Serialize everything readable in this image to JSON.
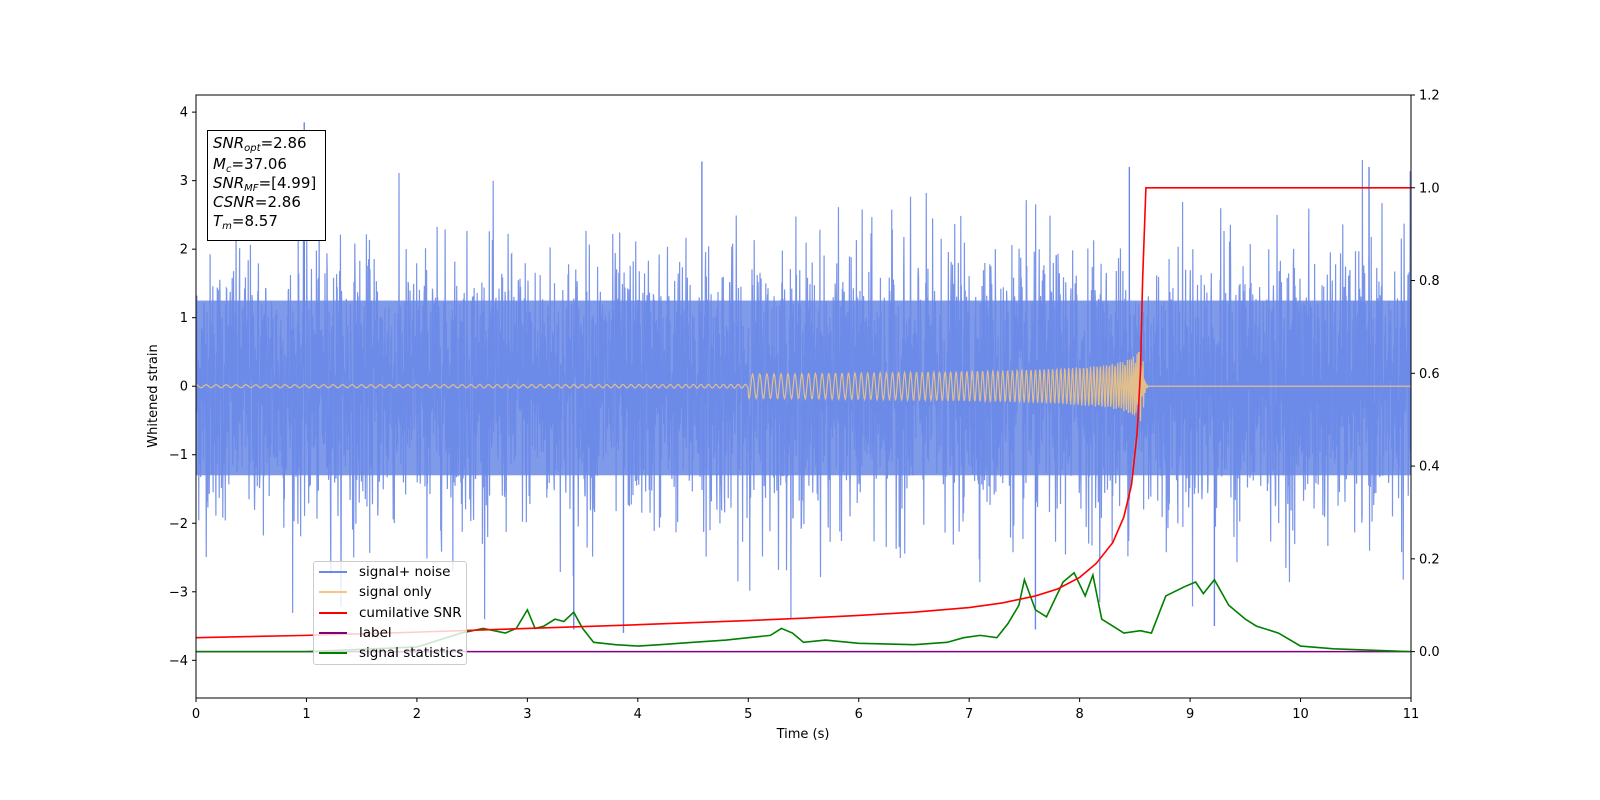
{
  "annotation": {
    "snr_opt_base": "SNR",
    "snr_opt_sub": "opt",
    "snr_opt_val": "=2.86",
    "mc_base": "M",
    "mc_sub": "c",
    "mc_val": "=37.06",
    "snr_mf_base": "SNR",
    "snr_mf_sub": "MF",
    "snr_mf_val": "=[4.99]",
    "csnr_base": "CSNR",
    "csnr_val": "=2.86",
    "tm_base": "T",
    "tm_sub": "m",
    "tm_val": "=8.57"
  },
  "chart_data": {
    "type": "line",
    "xlabel": "Time (s)",
    "ylabel": "Whitened strain",
    "xlim": [
      0,
      11
    ],
    "ylim": [
      -4.55,
      4.25
    ],
    "y2lim": [
      -0.1,
      1.2
    ],
    "xticks": [
      "0",
      "1",
      "2",
      "3",
      "4",
      "5",
      "6",
      "7",
      "8",
      "9",
      "10",
      "11"
    ],
    "yticks": [
      "−4",
      "−3",
      "−2",
      "−1",
      "0",
      "1",
      "2",
      "3",
      "4"
    ],
    "y2ticks": [
      "0.0",
      "0.2",
      "0.4",
      "0.6",
      "0.8",
      "1.0",
      "1.2"
    ],
    "grid": false,
    "legend_position": "lower-left",
    "colors": {
      "signal_noise": "#6a88e6",
      "signal_only": "#f5c77e",
      "cumulative_snr": "#ff0000",
      "label": "#800080",
      "signal_statistics": "#008000"
    },
    "series": [
      {
        "name": "signal+ noise",
        "axis": "left",
        "description_range": [
          -3.6,
          3.85
        ],
        "peaks_x": [
          0.98,
          3.42,
          3.87,
          4.58,
          7.6,
          8.45,
          9.22,
          10.62
        ]
      },
      {
        "name": "signal only",
        "axis": "left",
        "chirp_end_x": 8.57,
        "peak_amplitude": 0.65
      },
      {
        "name": "cumilative SNR",
        "axis": "right",
        "x": [
          0,
          1,
          2,
          3,
          4,
          5,
          5.5,
          6,
          6.5,
          7,
          7.3,
          7.6,
          7.8,
          8.0,
          8.15,
          8.3,
          8.4,
          8.47,
          8.52,
          8.55,
          8.57,
          8.6,
          11
        ],
        "values": [
          0.03,
          0.035,
          0.042,
          0.05,
          0.058,
          0.067,
          0.072,
          0.078,
          0.085,
          0.095,
          0.105,
          0.12,
          0.135,
          0.16,
          0.19,
          0.235,
          0.29,
          0.36,
          0.47,
          0.6,
          0.8,
          1.0,
          1.0
        ]
      },
      {
        "name": "label",
        "axis": "right",
        "x": [
          0,
          11
        ],
        "values": [
          0.0,
          0.0
        ]
      },
      {
        "name": "signal statistics",
        "axis": "right",
        "x": [
          0,
          0.5,
          1,
          1.5,
          2,
          2.4,
          2.6,
          2.8,
          2.9,
          3.0,
          3.07,
          3.15,
          3.25,
          3.33,
          3.42,
          3.5,
          3.6,
          3.8,
          4.0,
          4.2,
          4.5,
          4.8,
          5.0,
          5.2,
          5.3,
          5.4,
          5.5,
          5.7,
          6.0,
          6.5,
          6.8,
          6.95,
          7.1,
          7.25,
          7.35,
          7.45,
          7.5,
          7.6,
          7.7,
          7.85,
          7.95,
          8.05,
          8.12,
          8.2,
          8.3,
          8.4,
          8.55,
          8.65,
          8.78,
          8.95,
          9.05,
          9.12,
          9.22,
          9.35,
          9.5,
          9.6,
          9.8,
          10.0,
          10.3,
          11
        ],
        "values": [
          0.0,
          0.0,
          0.0,
          0.005,
          0.01,
          0.04,
          0.05,
          0.04,
          0.05,
          0.09,
          0.05,
          0.055,
          0.07,
          0.065,
          0.085,
          0.05,
          0.02,
          0.015,
          0.012,
          0.015,
          0.02,
          0.025,
          0.03,
          0.035,
          0.05,
          0.04,
          0.02,
          0.025,
          0.018,
          0.015,
          0.02,
          0.03,
          0.035,
          0.03,
          0.06,
          0.1,
          0.155,
          0.09,
          0.075,
          0.15,
          0.17,
          0.12,
          0.165,
          0.07,
          0.055,
          0.04,
          0.045,
          0.04,
          0.12,
          0.14,
          0.15,
          0.125,
          0.155,
          0.1,
          0.07,
          0.055,
          0.04,
          0.012,
          0.006,
          0.0
        ]
      }
    ]
  }
}
